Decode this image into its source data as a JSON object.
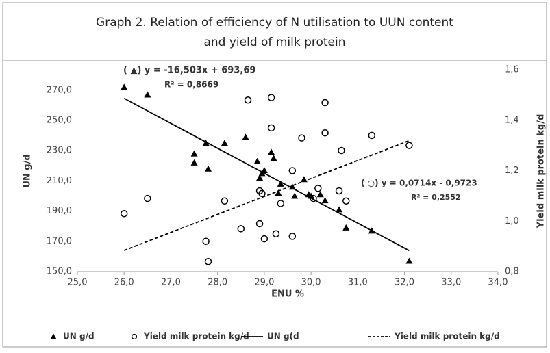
{
  "chart_data": {
    "type": "scatter",
    "title": "Graph 2. Relation of efficiency of N utilisation to UUN content",
    "subtitle": "and yield of milk protein",
    "x_label": "ENU %",
    "y_label": "UN g/d",
    "y2_label": "Yield milk protein  kg/d",
    "xlim": [
      25,
      34
    ],
    "xticks": [
      {
        "value": 25,
        "label": "25,0"
      },
      {
        "value": 26,
        "label": "26,0"
      },
      {
        "value": 27,
        "label": "27,0"
      },
      {
        "value": 28,
        "label": "28,0"
      },
      {
        "value": 29,
        "label": "29,0"
      },
      {
        "value": 30,
        "label": "30,0"
      },
      {
        "value": 31,
        "label": "31,0"
      },
      {
        "value": 32,
        "label": "32,0"
      },
      {
        "value": 33,
        "label": "33,0"
      },
      {
        "value": 34,
        "label": "34,0"
      }
    ],
    "ylim": [
      150,
      283.5
    ],
    "yticks": [
      {
        "value": 150,
        "label": "150,0"
      },
      {
        "value": 170,
        "label": "170,0"
      },
      {
        "value": 190,
        "label": "190,0"
      },
      {
        "value": 210,
        "label": "210,0"
      },
      {
        "value": 230,
        "label": "230,0"
      },
      {
        "value": 250,
        "label": "250,0"
      },
      {
        "value": 270,
        "label": "270,0"
      }
    ],
    "y2lim": [
      0.8,
      1.6
    ],
    "y2ticks": [
      {
        "value": 0.8,
        "label": "0,8"
      },
      {
        "value": 1.0,
        "label": "1,0"
      },
      {
        "value": 1.2,
        "label": "1,2"
      },
      {
        "value": 1.4,
        "label": "1,4"
      },
      {
        "value": 1.6,
        "label": "1,6"
      }
    ],
    "annotations": [
      "( ▲) y = -16,503x + 693,69",
      "R² = 0,8669",
      "( ○) y = 0,0714x - 0,9723",
      "R² = 0,2552"
    ],
    "series": [
      {
        "name": "UN g/d",
        "mark": "triangle",
        "color": "#000000",
        "x": [
          26.0,
          26.5,
          27.5,
          27.5,
          27.75,
          27.8,
          28.15,
          28.6,
          28.85,
          28.9,
          28.95,
          29.0,
          29.15,
          29.2,
          29.3,
          29.35,
          29.6,
          29.65,
          29.85,
          29.95,
          30.0,
          30.2,
          30.3,
          30.6,
          30.75,
          31.3,
          32.1
        ],
        "values": [
          272,
          267,
          228,
          222,
          235,
          218,
          235,
          239,
          223,
          212,
          215,
          217,
          229,
          225,
          202,
          208,
          206,
          200,
          211,
          201,
          200,
          201,
          197,
          191,
          179,
          177,
          157
        ]
      },
      {
        "name": "Yield milk protein kg/d",
        "mark": "circle",
        "color": "#000000",
        "axis": "y2",
        "x": [
          26.0,
          26.5,
          27.75,
          27.8,
          28.15,
          28.5,
          28.65,
          28.9,
          28.9,
          28.95,
          29.0,
          29.15,
          29.15,
          29.25,
          29.35,
          29.6,
          29.6,
          29.8,
          30.05,
          30.15,
          30.3,
          30.3,
          30.6,
          30.65,
          30.75,
          31.3,
          32.1
        ],
        "values": [
          1.03,
          1.09,
          0.92,
          0.84,
          1.08,
          0.97,
          1.48,
          1.12,
          0.99,
          1.11,
          0.93,
          1.49,
          1.37,
          0.95,
          1.07,
          1.2,
          0.94,
          1.33,
          1.09,
          1.13,
          1.35,
          1.47,
          1.12,
          1.28,
          1.08,
          1.34,
          1.3
        ]
      },
      {
        "name": "UN g(d",
        "mark": "line",
        "color": "#000000",
        "x": [
          26.0,
          32.1
        ],
        "values": [
          264.6,
          163.9
        ]
      },
      {
        "name": "Yield milk protein kg/d",
        "mark": "dash",
        "color": "#000000",
        "axis": "y2",
        "x": [
          26.0,
          32.1
        ],
        "values": [
          0.884,
          1.319
        ]
      }
    ]
  }
}
